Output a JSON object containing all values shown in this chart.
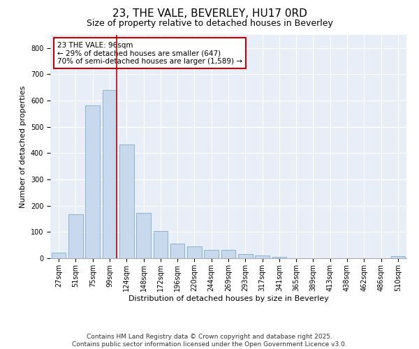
{
  "title_line1": "23, THE VALE, BEVERLEY, HU17 0RD",
  "title_line2": "Size of property relative to detached houses in Beverley",
  "xlabel": "Distribution of detached houses by size in Beverley",
  "ylabel": "Number of detached properties",
  "categories": [
    "27sqm",
    "51sqm",
    "75sqm",
    "99sqm",
    "124sqm",
    "148sqm",
    "172sqm",
    "196sqm",
    "220sqm",
    "244sqm",
    "269sqm",
    "293sqm",
    "317sqm",
    "341sqm",
    "365sqm",
    "389sqm",
    "413sqm",
    "438sqm",
    "462sqm",
    "486sqm",
    "510sqm"
  ],
  "values": [
    20,
    168,
    582,
    640,
    432,
    172,
    103,
    57,
    44,
    33,
    33,
    15,
    10,
    5,
    0,
    0,
    0,
    0,
    0,
    0,
    7
  ],
  "bar_color": "#c8d9ed",
  "bar_edge_color": "#8ab4d4",
  "vline_color": "#cc0000",
  "annotation_text": "23 THE VALE: 96sqm\n← 29% of detached houses are smaller (647)\n70% of semi-detached houses are larger (1,589) →",
  "annotation_box_color": "#ffffff",
  "annotation_box_edge": "#cc0000",
  "ylim": [
    0,
    850
  ],
  "yticks": [
    0,
    100,
    200,
    300,
    400,
    500,
    600,
    700,
    800
  ],
  "background_color": "#e8eef8",
  "footer_text": "Contains HM Land Registry data © Crown copyright and database right 2025.\nContains public sector information licensed under the Open Government Licence v3.0.",
  "title_fontsize": 11,
  "subtitle_fontsize": 9,
  "axis_label_fontsize": 8,
  "tick_fontsize": 7,
  "annotation_fontsize": 7.5,
  "footer_fontsize": 6.5
}
